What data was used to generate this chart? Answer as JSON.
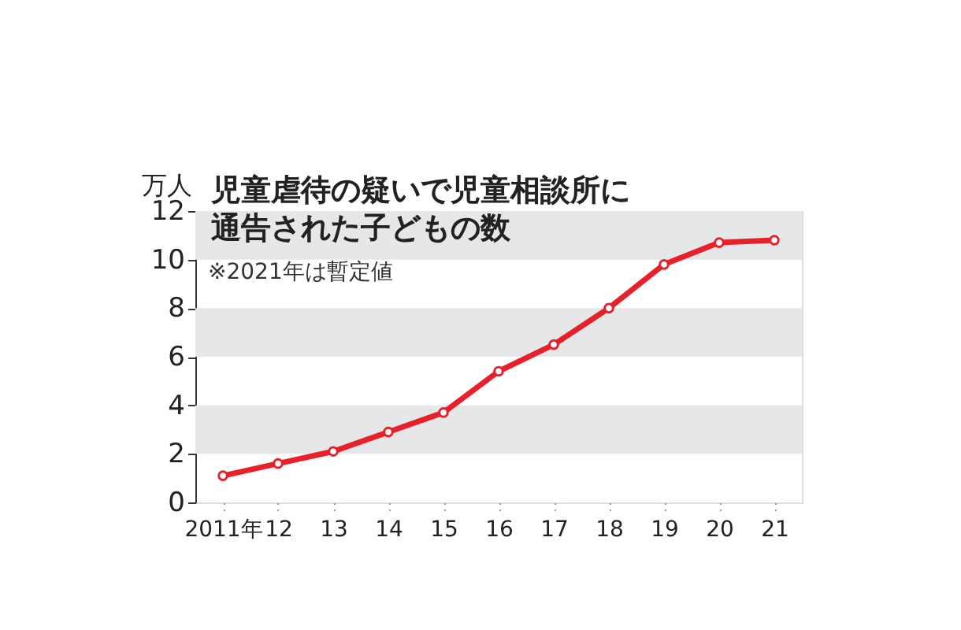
{
  "chart_data": {
    "type": "line",
    "title": "児童虐待の疑いで児童相談所に通告された子どもの数",
    "ylabel": "万人",
    "annotations": [
      "※2021年は暫定値"
    ],
    "categories": [
      "2011年",
      "12",
      "13",
      "14",
      "15",
      "16",
      "17",
      "18",
      "19",
      "20",
      "21"
    ],
    "series": [
      {
        "color": "#e8202a",
        "values": [
          1.1,
          1.6,
          2.1,
          2.9,
          3.7,
          5.4,
          6.5,
          8.0,
          9.8,
          10.7,
          10.8
        ]
      }
    ],
    "ylim": [
      0,
      12
    ],
    "yticks": [
      0,
      2,
      4,
      6,
      8,
      10,
      12
    ],
    "grid": false,
    "marker": "circle",
    "bands": [
      {
        "axis": "y",
        "from": 2,
        "to": 4,
        "color": "#e6e7e8"
      },
      {
        "axis": "y",
        "from": 6,
        "to": 8,
        "color": "#e6e7e8"
      },
      {
        "axis": "y",
        "from": 10,
        "to": 12,
        "color": "#e6e7e8"
      }
    ]
  }
}
